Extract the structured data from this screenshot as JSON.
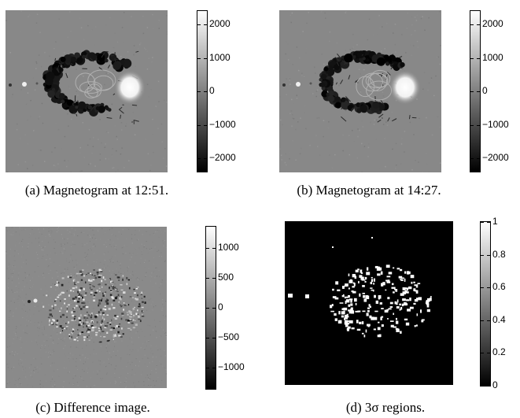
{
  "panels": [
    {
      "id": "a",
      "caption": "(a) Magnetogram at 12:51.",
      "kind": "magnetogram",
      "colorbar_ticks": [
        "2000",
        "1000",
        "0",
        "−1000",
        "−2000"
      ],
      "colorbar_values": [
        2000,
        1000,
        0,
        -1000,
        -2000
      ],
      "colorbar_range": [
        -2400,
        2400
      ]
    },
    {
      "id": "b",
      "caption": "(b) Magnetogram at 14:27.",
      "kind": "magnetogram",
      "colorbar_ticks": [
        "2000",
        "1000",
        "0",
        "−1000",
        "−2000"
      ],
      "colorbar_values": [
        2000,
        1000,
        0,
        -1000,
        -2000
      ],
      "colorbar_range": [
        -2400,
        2400
      ]
    },
    {
      "id": "c",
      "caption": "(c) Difference image.",
      "kind": "difference",
      "colorbar_ticks": [
        "1000",
        "500",
        "0",
        "−500",
        "−1000"
      ],
      "colorbar_values": [
        1000,
        500,
        0,
        -500,
        -1000
      ],
      "colorbar_range": [
        -1350,
        1350
      ]
    },
    {
      "id": "d",
      "caption": "(d) 3σ regions.",
      "kind": "mask",
      "colorbar_ticks": [
        "1",
        "0.8",
        "0.6",
        "0.4",
        "0.2",
        "0"
      ],
      "colorbar_values": [
        1,
        0.8,
        0.6,
        0.4,
        0.2,
        0
      ],
      "colorbar_range": [
        0,
        1
      ]
    }
  ]
}
